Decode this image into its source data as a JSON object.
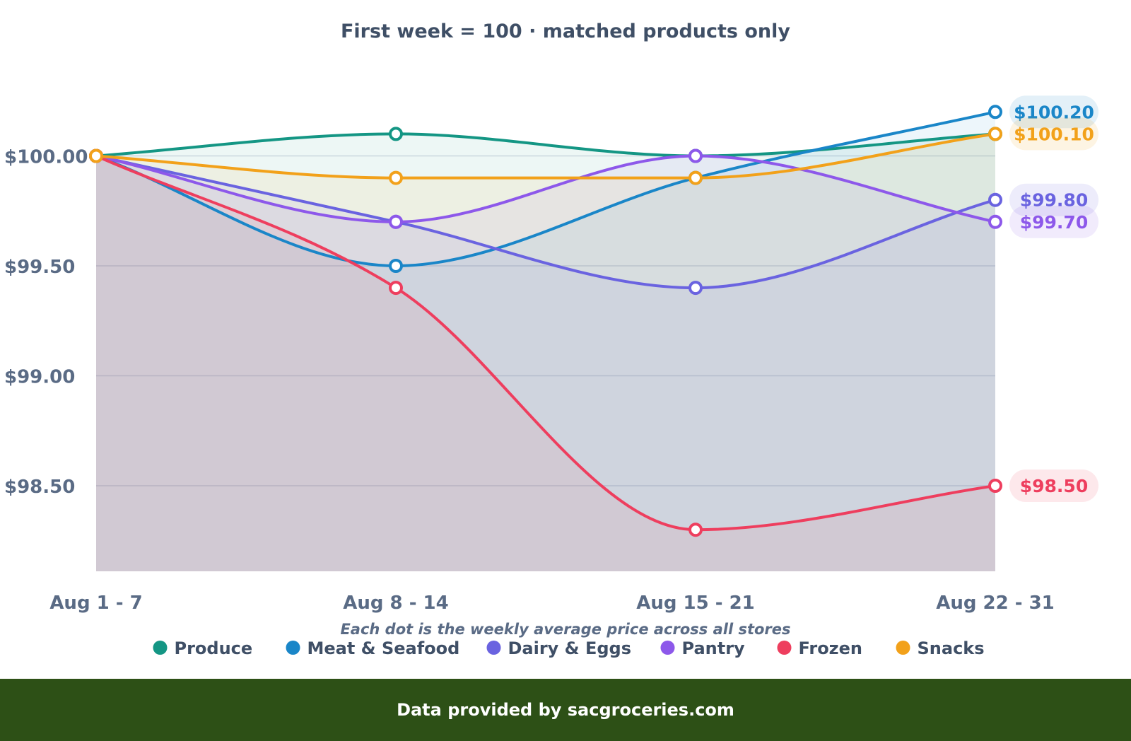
{
  "colors": {
    "background": "#ffffff",
    "footer_bg": "#2d5016",
    "footer_text": "#ffffff",
    "axis_text": "#5a6b85",
    "title_text": "#3f4f66",
    "grid": "#d8dde6"
  },
  "footer": {
    "text": "Data provided by sacgroceries.com"
  },
  "chart_data": {
    "type": "line",
    "title": "First week = 100 · matched products only",
    "xlabel": "Each dot is the weekly average price across all stores",
    "ylabel": "",
    "categories": [
      "Aug 1 - 7",
      "Aug 8 - 14",
      "Aug 15 - 21",
      "Aug 22 - 31"
    ],
    "ylim": [
      98.1,
      100.3
    ],
    "yticks": [
      98.5,
      99.0,
      99.5,
      100.0
    ],
    "ytick_labels": [
      "$98.50",
      "$99.00",
      "$99.50",
      "$100.00"
    ],
    "grid": true,
    "legend_position": "bottom",
    "series": [
      {
        "name": "Produce",
        "color": "#149684",
        "values": [
          100.0,
          100.1,
          100.0,
          100.1
        ],
        "end_label": ""
      },
      {
        "name": "Meat & Seafood",
        "color": "#1a86c8",
        "values": [
          100.0,
          99.5,
          99.9,
          100.2
        ],
        "end_label": "$100.20"
      },
      {
        "name": "Dairy & Eggs",
        "color": "#6a63e0",
        "values": [
          100.0,
          99.7,
          99.4,
          99.8
        ],
        "end_label": "$99.80"
      },
      {
        "name": "Pantry",
        "color": "#8d58ea",
        "values": [
          100.0,
          99.7,
          100.0,
          99.7
        ],
        "end_label": "$99.70"
      },
      {
        "name": "Frozen",
        "color": "#ee3e5e",
        "values": [
          100.0,
          99.4,
          98.3,
          98.5
        ],
        "end_label": "$98.50"
      },
      {
        "name": "Snacks",
        "color": "#f2a11a",
        "values": [
          100.0,
          99.9,
          99.9,
          100.1
        ],
        "end_label": "$100.10"
      }
    ]
  }
}
